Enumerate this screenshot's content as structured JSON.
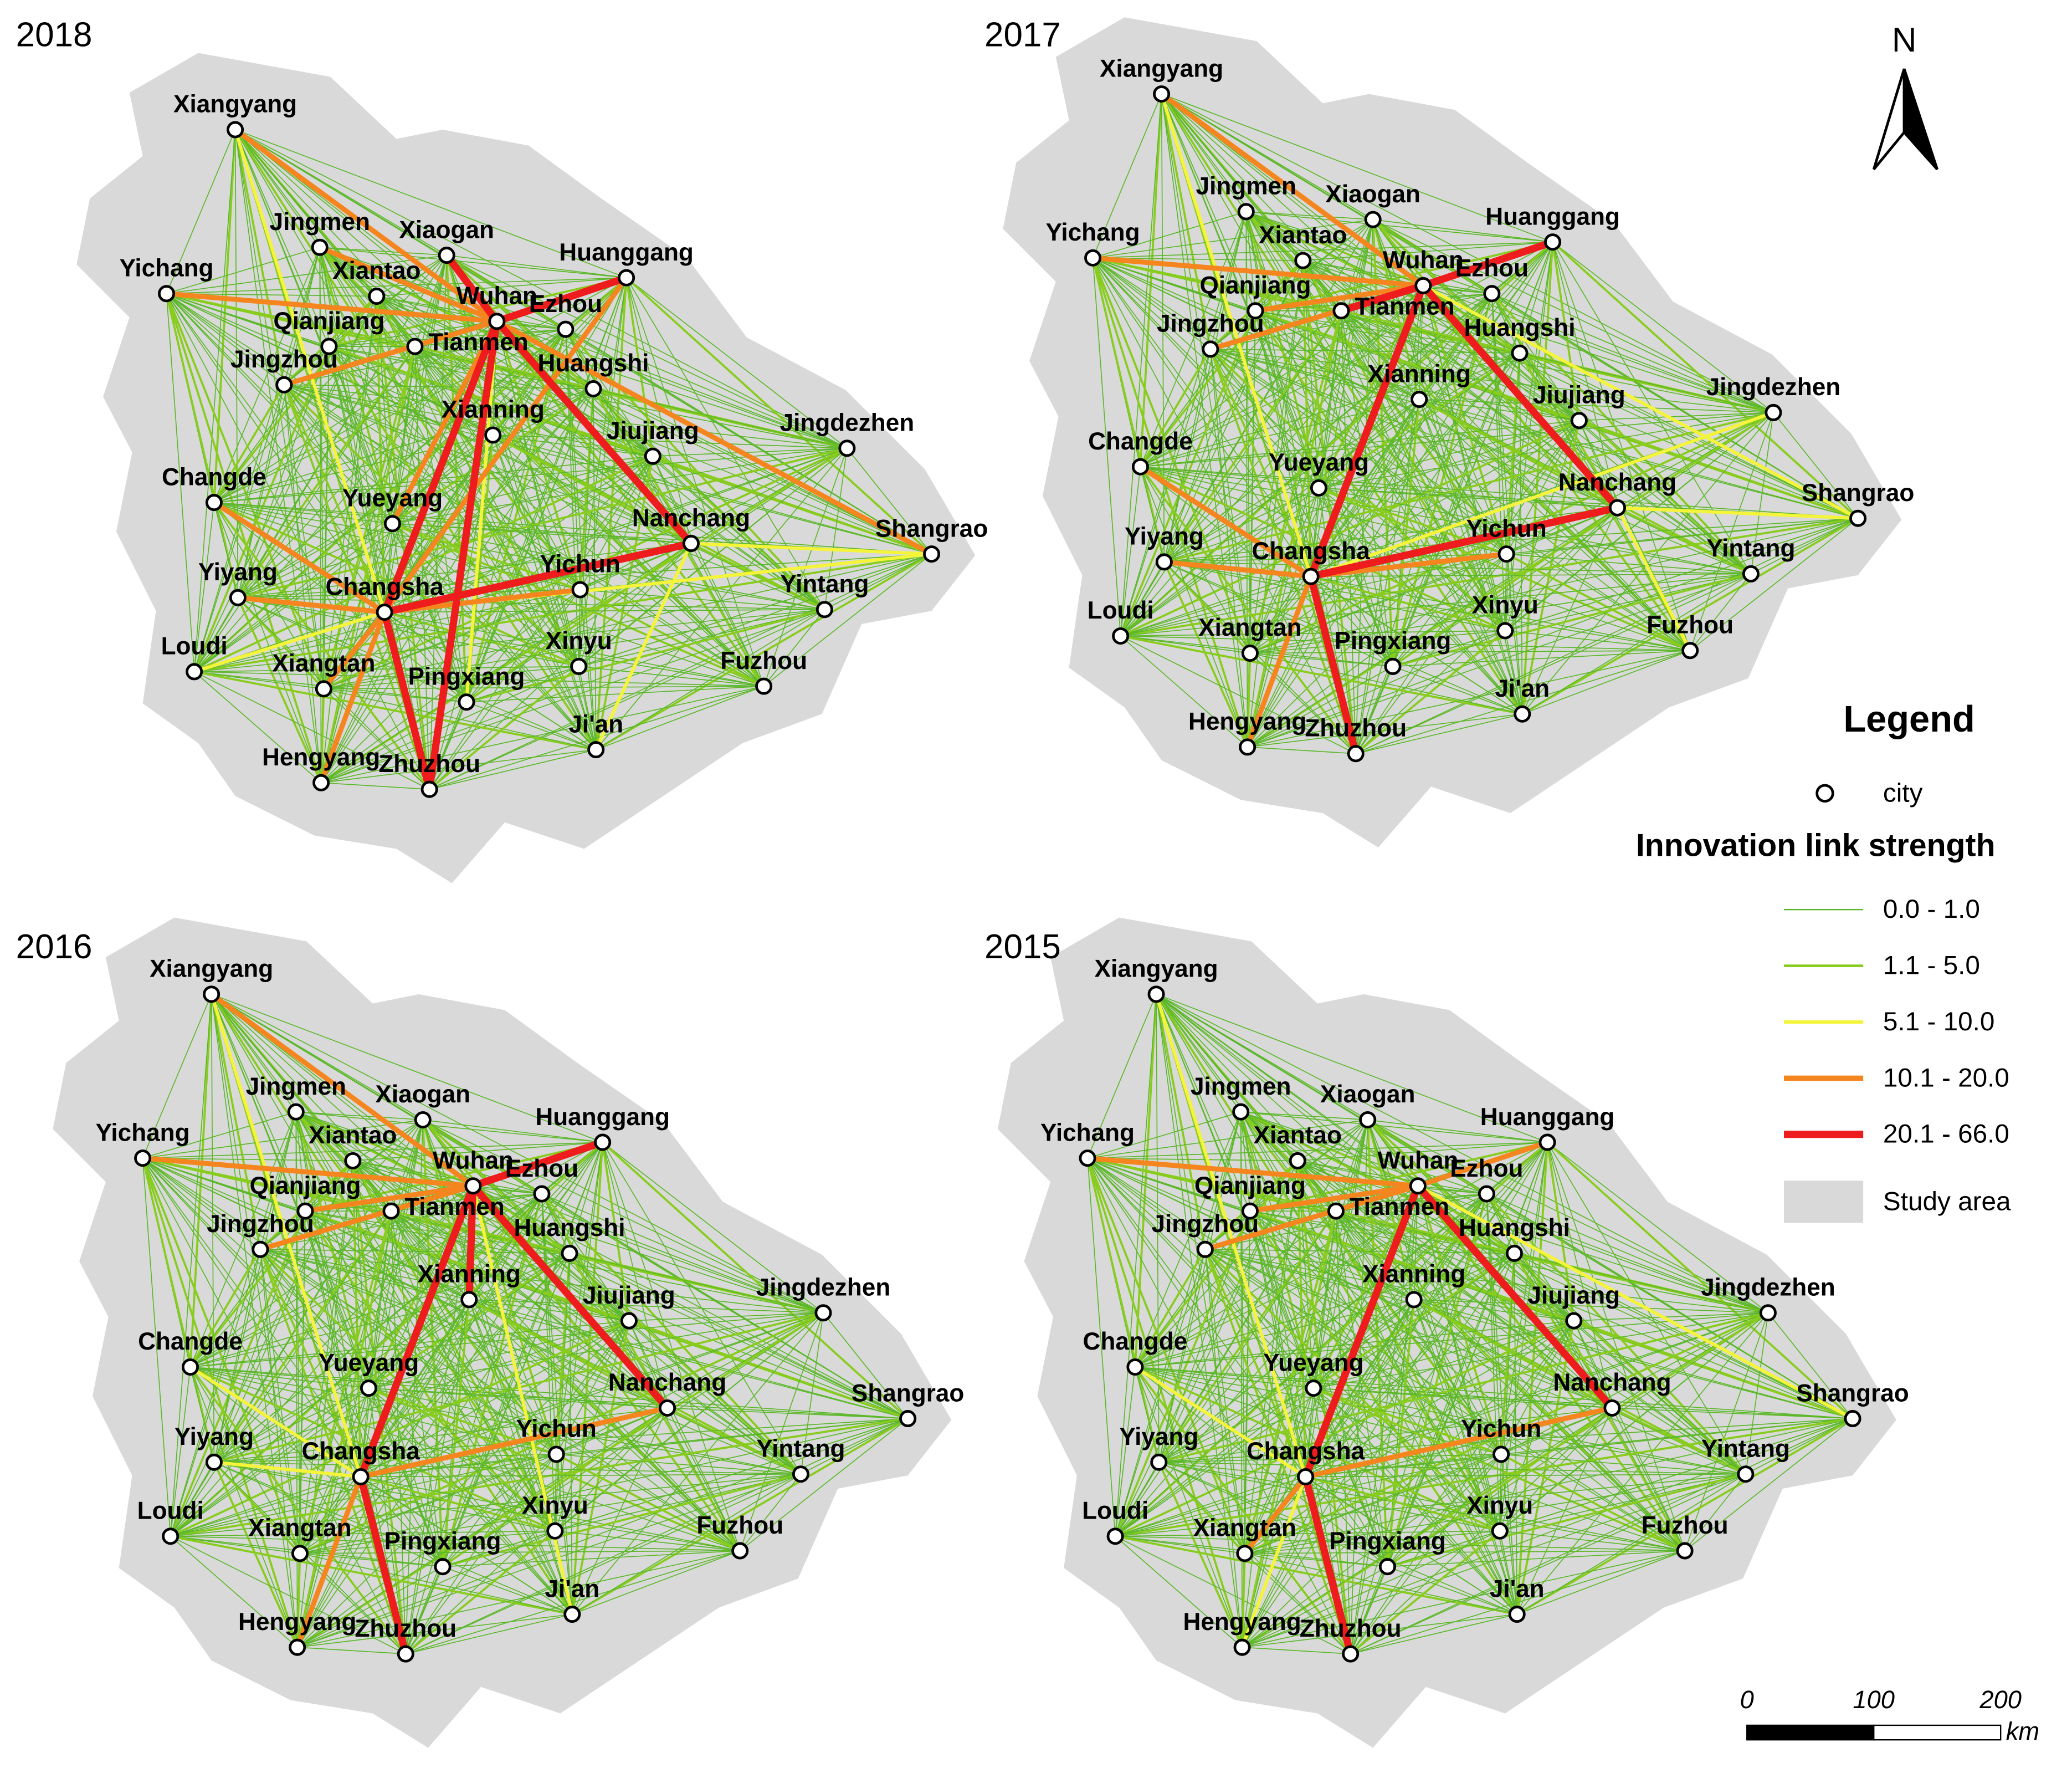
{
  "cities": [
    "Xiangyang",
    "Jingmen",
    "Xiaogan",
    "Huanggang",
    "Yichang",
    "Xiantao",
    "Wuhan",
    "Ezhou",
    "Qianjiang",
    "Tianmen",
    "Jingzhou",
    "Huangshi",
    "Xianning",
    "Jiujiang",
    "Jingdezhen",
    "Changde",
    "Yueyang",
    "Nanchang",
    "Shangrao",
    "Yiyang",
    "Changsha",
    "Yichun",
    "Yintang",
    "Loudi",
    "Xiangtan",
    "Xinyu",
    "Fuzhou",
    "Pingxiang",
    "Ji'an",
    "Hengyang",
    "Zhuzhou"
  ],
  "panels": [
    {
      "year": "2018",
      "red": [
        [
          "Wuhan",
          "Changsha"
        ],
        [
          "Wuhan",
          "Huanggang"
        ],
        [
          "Wuhan",
          "Nanchang"
        ],
        [
          "Wuhan",
          "Zhuzhou"
        ],
        [
          "Changsha",
          "Nanchang"
        ],
        [
          "Changsha",
          "Zhuzhou"
        ],
        [
          "Wuhan",
          "Xiaogan"
        ]
      ],
      "orange": [
        [
          "Wuhan",
          "Yichang"
        ],
        [
          "Wuhan",
          "Jingzhou"
        ],
        [
          "Wuhan",
          "Xiangyang"
        ],
        [
          "Wuhan",
          "Shangrao"
        ],
        [
          "Changsha",
          "Hengyang"
        ],
        [
          "Changsha",
          "Changde"
        ],
        [
          "Changsha",
          "Yiyang"
        ],
        [
          "Wuhan",
          "Jingmen"
        ],
        [
          "Changsha",
          "Yichun"
        ],
        [
          "Changsha",
          "Xiangtan"
        ],
        [
          "Wuhan",
          "Yueyang"
        ],
        [
          "Changsha",
          "Huanggang"
        ]
      ],
      "yellow": [
        [
          "Nanchang",
          "Shangrao"
        ],
        [
          "Changsha",
          "Shangrao"
        ],
        [
          "Wuhan",
          "Pingxiang"
        ],
        [
          "Nanchang",
          "Ji'an"
        ],
        [
          "Changsha",
          "Loudi"
        ],
        [
          "Xiangyang",
          "Changsha"
        ]
      ]
    },
    {
      "year": "2017",
      "red": [
        [
          "Wuhan",
          "Changsha"
        ],
        [
          "Wuhan",
          "Huanggang"
        ],
        [
          "Wuhan",
          "Nanchang"
        ],
        [
          "Changsha",
          "Nanchang"
        ],
        [
          "Changsha",
          "Zhuzhou"
        ],
        [
          "Wuhan",
          "Tianmen"
        ]
      ],
      "orange": [
        [
          "Wuhan",
          "Yichang"
        ],
        [
          "Wuhan",
          "Jingzhou"
        ],
        [
          "Wuhan",
          "Xiangyang"
        ],
        [
          "Changsha",
          "Hengyang"
        ],
        [
          "Changsha",
          "Changde"
        ],
        [
          "Changsha",
          "Yichun"
        ],
        [
          "Wuhan",
          "Qianjiang"
        ],
        [
          "Changsha",
          "Yiyang"
        ]
      ],
      "yellow": [
        [
          "Nanchang",
          "Shangrao"
        ],
        [
          "Wuhan",
          "Shangrao"
        ],
        [
          "Changsha",
          "Jingdezhen"
        ],
        [
          "Nanchang",
          "Fuzhou"
        ],
        [
          "Xiangyang",
          "Changsha"
        ]
      ]
    },
    {
      "year": "2016",
      "red": [
        [
          "Wuhan",
          "Changsha"
        ],
        [
          "Wuhan",
          "Huanggang"
        ],
        [
          "Wuhan",
          "Nanchang"
        ],
        [
          "Changsha",
          "Zhuzhou"
        ],
        [
          "Wuhan",
          "Xianning"
        ]
      ],
      "orange": [
        [
          "Wuhan",
          "Yichang"
        ],
        [
          "Changsha",
          "Hengyang"
        ],
        [
          "Changsha",
          "Nanchang"
        ],
        [
          "Wuhan",
          "Jingzhou"
        ],
        [
          "Xiangyang",
          "Wuhan"
        ],
        [
          "Wuhan",
          "Qianjiang"
        ]
      ],
      "yellow": [
        [
          "Changsha",
          "Changde"
        ],
        [
          "Changsha",
          "Yiyang"
        ],
        [
          "Wuhan",
          "Ji'an"
        ],
        [
          "Xiangyang",
          "Changsha"
        ]
      ]
    },
    {
      "year": "2015",
      "red": [
        [
          "Wuhan",
          "Changsha"
        ],
        [
          "Wuhan",
          "Nanchang"
        ],
        [
          "Changsha",
          "Zhuzhou"
        ]
      ],
      "orange": [
        [
          "Wuhan",
          "Yichang"
        ],
        [
          "Wuhan",
          "Jingzhou"
        ],
        [
          "Wuhan",
          "Huanggang"
        ],
        [
          "Changsha",
          "Nanchang"
        ],
        [
          "Changsha",
          "Xiangtan"
        ],
        [
          "Wuhan",
          "Qianjiang"
        ]
      ],
      "yellow": [
        [
          "Changsha",
          "Hengyang"
        ],
        [
          "Changsha",
          "Changde"
        ],
        [
          "Wuhan",
          "Shangrao"
        ],
        [
          "Xiangyang",
          "Changsha"
        ]
      ]
    }
  ],
  "legend": {
    "title": "Legend",
    "city": "city",
    "links_title": "Innovation link strength",
    "classes": [
      {
        "label": "0.0 - 1.0",
        "color": "#5cb82a"
      },
      {
        "label": "1.1 - 5.0",
        "color": "#88cc1e"
      },
      {
        "label": "5.1 - 10.0",
        "color": "#f4f43a"
      },
      {
        "label": "10.1 - 20.0",
        "color": "#f5861f"
      },
      {
        "label": "20.1 - 66.0",
        "color": "#ee1c1c"
      }
    ],
    "study_area": "Study area"
  },
  "north": "N",
  "scale": {
    "ticks": [
      0,
      100,
      200
    ],
    "unit": "km"
  }
}
